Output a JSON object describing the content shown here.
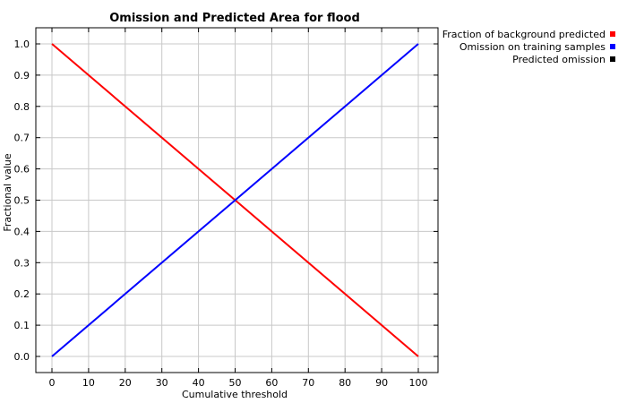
{
  "chart_data": {
    "type": "line",
    "title": "Omission and Predicted Area for flood",
    "xlabel": "Cumulative threshold",
    "ylabel": "Fractional value",
    "xlim": [
      0,
      100
    ],
    "ylim": [
      0,
      1
    ],
    "xticks": [
      0,
      10,
      20,
      30,
      40,
      50,
      60,
      70,
      80,
      90,
      100
    ],
    "yticks": [
      0.0,
      0.1,
      0.2,
      0.3,
      0.4,
      0.5,
      0.6,
      0.7,
      0.8,
      0.9,
      1.0
    ],
    "ytick_labels": [
      "0.0",
      "0.1",
      "0.2",
      "0.3",
      "0.4",
      "0.5",
      "0.6",
      "0.7",
      "0.8",
      "0.9",
      "1.0"
    ],
    "grid": true,
    "legend_position": "top-right outside",
    "series": [
      {
        "name": "Fraction of background predicted",
        "color": "#ff0000",
        "x": [
          0,
          100
        ],
        "y": [
          1.0,
          0.0
        ]
      },
      {
        "name": "Omission on training samples",
        "color": "#0000ff",
        "x": [
          0,
          100
        ],
        "y": [
          0.0,
          1.0
        ]
      },
      {
        "name": "Predicted omission",
        "color": "#000000",
        "x": [],
        "y": []
      }
    ]
  }
}
